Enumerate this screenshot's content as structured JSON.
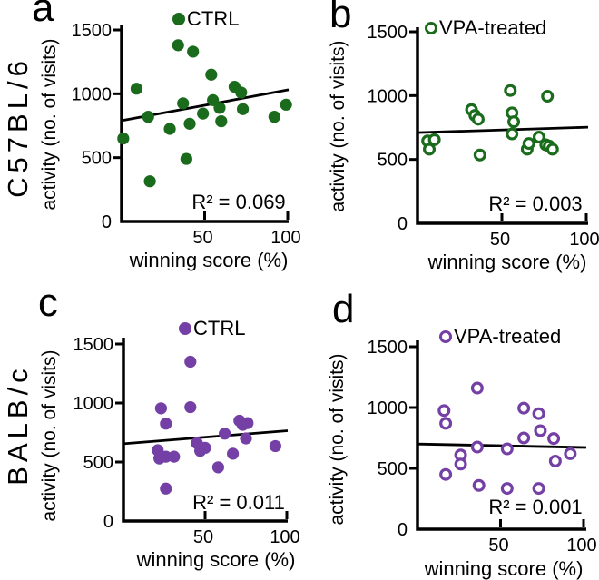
{
  "figure": {
    "background": "#ffffff",
    "row_labels": [
      {
        "text": "C57BL/6"
      },
      {
        "text": "BALB/c"
      }
    ],
    "colors": {
      "green": "#1A6B1C",
      "purple": "#7440A5",
      "axis_black": "#000000"
    }
  },
  "chart_data": [
    {
      "id": "a",
      "panel_letter": "a",
      "type": "scatter",
      "strain": "C57BL/6",
      "group": "CTRL",
      "legend": "CTRL",
      "marker": "filled",
      "color": "#1A6B1C",
      "r2_label": "R² = 0.069",
      "xlabel": "winning score (%)",
      "ylabel": "activity (no. of visits)",
      "xlim": [
        0,
        100
      ],
      "ylim": [
        0,
        1500
      ],
      "xticks": [
        50,
        100
      ],
      "yticks": [
        0,
        500,
        1000,
        1500
      ],
      "points": [
        [
          1,
          650
        ],
        [
          9,
          1040
        ],
        [
          16,
          820
        ],
        [
          17,
          315
        ],
        [
          29,
          725
        ],
        [
          34,
          1380
        ],
        [
          37,
          925
        ],
        [
          39,
          490
        ],
        [
          41,
          765
        ],
        [
          43,
          1330
        ],
        [
          49,
          845
        ],
        [
          54,
          1150
        ],
        [
          55,
          950
        ],
        [
          59,
          890
        ],
        [
          60,
          785
        ],
        [
          68,
          1055
        ],
        [
          72,
          1010
        ],
        [
          73,
          880
        ],
        [
          92,
          820
        ],
        [
          99,
          915
        ]
      ],
      "trendline": {
        "x": [
          0,
          100
        ],
        "y": [
          790,
          1030
        ]
      }
    },
    {
      "id": "b",
      "panel_letter": "b",
      "type": "scatter",
      "strain": "C57BL/6",
      "group": "VPA-treated",
      "legend": "VPA-treated",
      "marker": "open",
      "color": "#1A6B1C",
      "r2_label": "R² = 0.003",
      "xlabel": "winning score (%)",
      "ylabel": "activity (no. of visits)",
      "xlim": [
        0,
        100
      ],
      "ylim": [
        0,
        1500
      ],
      "xticks": [
        50,
        100
      ],
      "yticks": [
        0,
        500,
        1000,
        1500
      ],
      "points": [
        [
          6,
          645
        ],
        [
          7,
          580
        ],
        [
          10,
          655
        ],
        [
          32,
          890
        ],
        [
          34,
          845
        ],
        [
          36,
          815
        ],
        [
          37,
          535
        ],
        [
          55,
          1040
        ],
        [
          56,
          865
        ],
        [
          57,
          795
        ],
        [
          56,
          700
        ],
        [
          65,
          580
        ],
        [
          66,
          625
        ],
        [
          72,
          675
        ],
        [
          76,
          615
        ],
        [
          77,
          995
        ],
        [
          78,
          605
        ],
        [
          80,
          580
        ]
      ],
      "trendline": {
        "x": [
          0,
          100
        ],
        "y": [
          710,
          752
        ]
      }
    },
    {
      "id": "c",
      "panel_letter": "c",
      "type": "scatter",
      "strain": "BALB/c",
      "group": "CTRL",
      "legend": "CTRL",
      "marker": "filled",
      "color": "#7440A5",
      "r2_label": "R² = 0.011",
      "xlabel": "winning score (%)",
      "ylabel": "activity (no. of visits)",
      "xlim": [
        0,
        100
      ],
      "ylim": [
        0,
        1500
      ],
      "xticks": [
        50,
        100
      ],
      "yticks": [
        0,
        500,
        1000,
        1500
      ],
      "points": [
        [
          21,
          600
        ],
        [
          22,
          530
        ],
        [
          23,
          955
        ],
        [
          26,
          825
        ],
        [
          26,
          545
        ],
        [
          26,
          275
        ],
        [
          31,
          545
        ],
        [
          41,
          1350
        ],
        [
          41,
          965
        ],
        [
          45,
          660
        ],
        [
          47,
          595
        ],
        [
          50,
          620
        ],
        [
          58,
          455
        ],
        [
          62,
          740
        ],
        [
          67,
          570
        ],
        [
          71,
          850
        ],
        [
          73,
          815
        ],
        [
          75,
          700
        ],
        [
          76,
          830
        ],
        [
          93,
          635
        ]
      ],
      "trendline": {
        "x": [
          0,
          100
        ],
        "y": [
          655,
          765
        ]
      }
    },
    {
      "id": "d",
      "panel_letter": "d",
      "type": "scatter",
      "strain": "BALB/c",
      "group": "VPA-treated",
      "legend": "VPA-treated",
      "marker": "open",
      "color": "#7440A5",
      "r2_label": "R² = 0.001",
      "xlabel": "winning score (%)",
      "ylabel": "activity (no. of visits)",
      "xlim": [
        0,
        100
      ],
      "ylim": [
        0,
        1500
      ],
      "xticks": [
        50,
        100
      ],
      "yticks": [
        0,
        500,
        1000,
        1500
      ],
      "points": [
        [
          16,
          975
        ],
        [
          17,
          870
        ],
        [
          17,
          450
        ],
        [
          26,
          610
        ],
        [
          26,
          535
        ],
        [
          36,
          1160
        ],
        [
          36,
          675
        ],
        [
          37,
          360
        ],
        [
          54,
          660
        ],
        [
          54,
          335
        ],
        [
          64,
          995
        ],
        [
          64,
          750
        ],
        [
          73,
          950
        ],
        [
          74,
          810
        ],
        [
          73,
          335
        ],
        [
          82,
          745
        ],
        [
          83,
          560
        ],
        [
          92,
          620
        ]
      ],
      "trendline": {
        "x": [
          0,
          100
        ],
        "y": [
          700,
          672
        ]
      }
    }
  ]
}
